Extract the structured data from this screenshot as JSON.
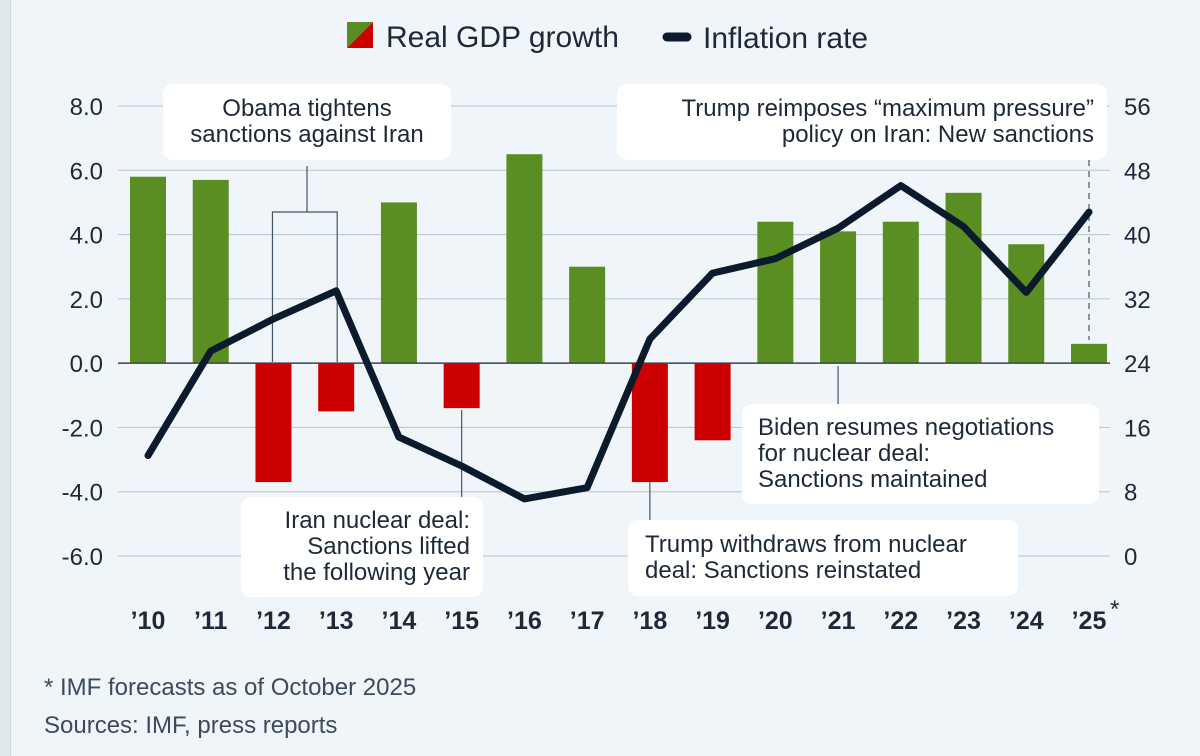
{
  "chart_data": {
    "type": "bar+line",
    "legend": {
      "gdp_label": "Real GDP growth",
      "inflation_label": "Inflation rate",
      "positive_color": "#5b8e22",
      "negative_color": "#cc0000",
      "line_color": "#0b1a2c"
    },
    "categories": [
      "'10",
      "'11",
      "'12",
      "'13",
      "'14",
      "'15",
      "'16",
      "'17",
      "'18",
      "'19",
      "'20",
      "'21",
      "'22",
      "'23",
      "'24",
      "'25"
    ],
    "category_labels": [
      "’10",
      "’11",
      "’12",
      "’13",
      "’14",
      "’15",
      "’16",
      "’17",
      "’18",
      "’19",
      "’20",
      "’21",
      "’22",
      "’23",
      "’24",
      "’25"
    ],
    "last_category_marker": "*",
    "gdp_growth": [
      5.8,
      5.7,
      -3.7,
      -1.5,
      5.0,
      -1.4,
      6.5,
      3.0,
      -3.7,
      -2.4,
      4.4,
      4.1,
      4.4,
      5.3,
      3.7,
      0.6
    ],
    "inflation_rate": [
      12.5,
      25.5,
      29.5,
      33.0,
      14.8,
      11.2,
      7.1,
      8.5,
      27.0,
      35.2,
      37.0,
      40.8,
      46.1,
      41.0,
      32.8,
      42.8
    ],
    "y_left": {
      "min": -6,
      "max": 8,
      "ticks": [
        "8.0",
        "6.0",
        "4.0",
        "2.0",
        "0.0",
        "-2.0",
        "-4.0",
        "-6.0"
      ]
    },
    "y_right": {
      "min": 0,
      "max": 56,
      "ticks": [
        "56",
        "48",
        "40",
        "32",
        "24",
        "16",
        "8",
        "0"
      ]
    },
    "annotations": [
      {
        "id": "obama",
        "lines": [
          "Obama tightens",
          "sanctions against Iran"
        ]
      },
      {
        "id": "trump_max",
        "lines": [
          "Trump reimposes “maximum pressure”",
          "policy on Iran: New sanctions"
        ]
      },
      {
        "id": "iran_deal",
        "lines": [
          "Iran nuclear deal:",
          "Sanctions lifted",
          "the following year"
        ]
      },
      {
        "id": "biden",
        "lines": [
          "Biden resumes negotiations",
          "for nuclear deal:",
          "Sanctions maintained"
        ]
      },
      {
        "id": "trump_withdraw",
        "lines": [
          "Trump withdraws from nuclear",
          "deal: Sanctions reinstated"
        ]
      }
    ]
  },
  "footnotes": {
    "forecast_note": "* IMF forecasts as of October 2025",
    "sources": "Sources: IMF, press reports"
  }
}
